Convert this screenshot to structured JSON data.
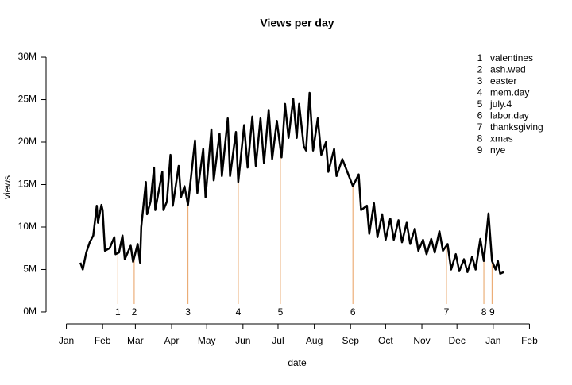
{
  "chart_data": {
    "type": "line",
    "title": "Views per day",
    "x_label": "date",
    "y_label": "views",
    "x": [
      12,
      14,
      17,
      20,
      23,
      26,
      27,
      30,
      31,
      33,
      37,
      41,
      42,
      45,
      48,
      50,
      55,
      57,
      61,
      63,
      64,
      68,
      69,
      72,
      75,
      76,
      82,
      83,
      86,
      89,
      91,
      96,
      98,
      101,
      104,
      110,
      112,
      117,
      119,
      124,
      126,
      131,
      133,
      138,
      140,
      145,
      147,
      152,
      155,
      159,
      162,
      166,
      169,
      173,
      176,
      180,
      184,
      187,
      190,
      194,
      197,
      199,
      203,
      205,
      208,
      211,
      215,
      218,
      222,
      224,
      229,
      231,
      236,
      245,
      250,
      252,
      257,
      259,
      263,
      266,
      270,
      273,
      277,
      280,
      284,
      287,
      291,
      294,
      298,
      301,
      305,
      308,
      312,
      315,
      319,
      322,
      326,
      329,
      333,
      336,
      340,
      343,
      347,
      350,
      354,
      357,
      361,
      364,
      367,
      369,
      371,
      374
    ],
    "series": [
      {
        "name": "views",
        "color": "#000000",
        "values": [
          5.8,
          5,
          7,
          8.2,
          9,
          12.5,
          10.5,
          12.6,
          12,
          7.2,
          7.5,
          8.8,
          6.8,
          7,
          9,
          6.2,
          7.8,
          5.9,
          8,
          5.8,
          10,
          15.3,
          11.5,
          13,
          17,
          12,
          16.5,
          12,
          13,
          18.5,
          12.5,
          17.2,
          13.5,
          14.8,
          12.6,
          20.2,
          14,
          19.2,
          13.5,
          21.5,
          15.5,
          21,
          16,
          22.8,
          16,
          21.2,
          15.3,
          22,
          17,
          23,
          17.2,
          22.8,
          17.5,
          23.8,
          18,
          22.5,
          18.2,
          24.5,
          20.5,
          25.1,
          20.5,
          24.5,
          19.5,
          19,
          25.8,
          19,
          22.8,
          18.5,
          20,
          16.5,
          19.2,
          16,
          18,
          14.8,
          16.2,
          12,
          12.5,
          9.2,
          12.8,
          8.8,
          11.5,
          8.5,
          11,
          8.5,
          10.8,
          8.2,
          10.5,
          8,
          9.8,
          7.2,
          8.5,
          6.8,
          8.6,
          7,
          9.5,
          7.2,
          8,
          5,
          6.8,
          4.8,
          6.2,
          4.7,
          6.5,
          5,
          8.6,
          6,
          11.6,
          6,
          5,
          6,
          4.5,
          4.7
        ]
      }
    ],
    "xlim": [
      -16,
      412
    ],
    "ylim": [
      -1.2,
      31.2
    ],
    "xticks": [
      {
        "value": 0,
        "label": "Jan"
      },
      {
        "value": 31,
        "label": "Feb"
      },
      {
        "value": 59,
        "label": "Mar"
      },
      {
        "value": 90,
        "label": "Apr"
      },
      {
        "value": 120,
        "label": "May"
      },
      {
        "value": 151,
        "label": "Jun"
      },
      {
        "value": 181,
        "label": "Jul"
      },
      {
        "value": 212,
        "label": "Aug"
      },
      {
        "value": 243,
        "label": "Sep"
      },
      {
        "value": 273,
        "label": "Oct"
      },
      {
        "value": 304,
        "label": "Nov"
      },
      {
        "value": 334,
        "label": "Dec"
      },
      {
        "value": 365,
        "label": "Jan"
      },
      {
        "value": 396,
        "label": "Feb"
      }
    ],
    "yticks": [
      {
        "value": 0,
        "label": "0M"
      },
      {
        "value": 5,
        "label": "5M"
      },
      {
        "value": 10,
        "label": "10M"
      },
      {
        "value": 15,
        "label": "15M"
      },
      {
        "value": 20,
        "label": "20M"
      },
      {
        "value": 25,
        "label": "25M"
      },
      {
        "value": 30,
        "label": "30M"
      }
    ],
    "events_color": "#e8a060",
    "events": [
      {
        "number": 1,
        "name": "valentines",
        "x": 44
      },
      {
        "number": 2,
        "name": "ash.wed",
        "x": 58
      },
      {
        "number": 3,
        "name": "easter",
        "x": 104
      },
      {
        "number": 4,
        "name": "mem.day",
        "x": 147
      },
      {
        "number": 5,
        "name": "july.4",
        "x": 183
      },
      {
        "number": 6,
        "name": "labor.day",
        "x": 245
      },
      {
        "number": 7,
        "name": "thanksgiving",
        "x": 325
      },
      {
        "number": 8,
        "name": "xmas",
        "x": 357
      },
      {
        "number": 9,
        "name": "nye",
        "x": 364
      }
    ]
  }
}
